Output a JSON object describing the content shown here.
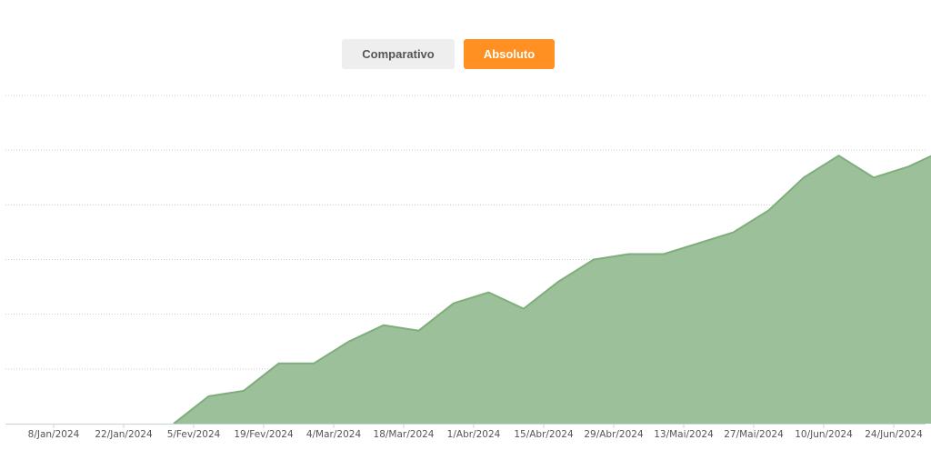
{
  "toggle": {
    "comparativo_label": "Comparativo",
    "absoluto_label": "Absoluto",
    "active": "Absoluto"
  },
  "colors": {
    "accent": "#ff9021",
    "area_fill": "#9cc09a",
    "area_line": "#7fae7c",
    "grid": "#cccccc",
    "inactive_button": "#eeeeee"
  },
  "chart_data": {
    "type": "area",
    "title": "",
    "xlabel": "",
    "ylabel": "",
    "y_tick_labels_visible": false,
    "grid": "horizontal dotted",
    "ylim": [
      0,
      6
    ],
    "x_ticks": [
      "8/Jan/2024",
      "22/Jan/2024",
      "5/Fev/2024",
      "19/Fev/2024",
      "4/Mar/2024",
      "18/Mar/2024",
      "1/Abr/2024",
      "15/Abr/2024",
      "29/Abr/2024",
      "13/Mai/2024",
      "27/Mai/2024",
      "10/Jun/2024",
      "24/Jun/2024"
    ],
    "points": [
      {
        "x": "2024-02-01",
        "y": 0.0
      },
      {
        "x": "2024-02-08",
        "y": 0.5
      },
      {
        "x": "2024-02-15",
        "y": 0.6
      },
      {
        "x": "2024-02-22",
        "y": 1.1
      },
      {
        "x": "2024-02-29",
        "y": 1.1
      },
      {
        "x": "2024-03-07",
        "y": 1.5
      },
      {
        "x": "2024-03-14",
        "y": 1.8
      },
      {
        "x": "2024-03-21",
        "y": 1.7
      },
      {
        "x": "2024-03-28",
        "y": 2.2
      },
      {
        "x": "2024-04-04",
        "y": 2.4
      },
      {
        "x": "2024-04-11",
        "y": 2.1
      },
      {
        "x": "2024-04-18",
        "y": 2.6
      },
      {
        "x": "2024-04-25",
        "y": 3.0
      },
      {
        "x": "2024-05-02",
        "y": 3.1
      },
      {
        "x": "2024-05-09",
        "y": 3.1
      },
      {
        "x": "2024-05-16",
        "y": 3.3
      },
      {
        "x": "2024-05-23",
        "y": 3.5
      },
      {
        "x": "2024-05-30",
        "y": 3.9
      },
      {
        "x": "2024-06-06",
        "y": 4.5
      },
      {
        "x": "2024-06-13",
        "y": 4.9
      },
      {
        "x": "2024-06-20",
        "y": 4.5
      },
      {
        "x": "2024-06-27",
        "y": 4.7
      },
      {
        "x": "2024-07-04",
        "y": 5.0
      }
    ]
  }
}
